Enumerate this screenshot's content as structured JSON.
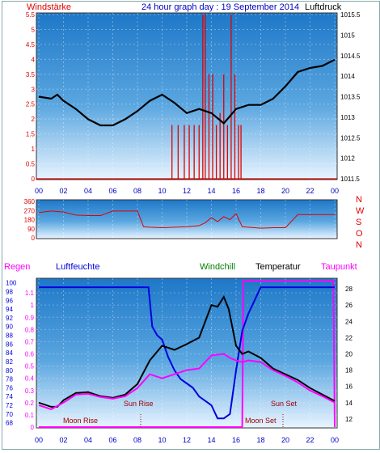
{
  "header": {
    "wind_label": "Windstärke",
    "title": "24 hour graph day : 19 September 2014",
    "pressure_label": "Luftdruck"
  },
  "time_ticks": [
    "00",
    "02",
    "04",
    "06",
    "08",
    "10",
    "12",
    "14",
    "16",
    "18",
    "20",
    "22",
    "00"
  ],
  "compass": [
    "N",
    "W",
    "S",
    "O",
    "N"
  ],
  "legend": {
    "rain": "Regen",
    "humidity": "Luftfeuchte",
    "windchill": "Windchill",
    "temperature": "Temperatur",
    "dewpoint": "Taupunkt"
  },
  "annotations": {
    "moon_rise": "Moon Rise",
    "sun_rise": "Sun Rise",
    "moon_set": "Moon Set",
    "sun_set": "Sun Set"
  },
  "colors": {
    "red": "#e00000",
    "blue": "#0000e0",
    "green": "#008000",
    "magenta": "#ff00ff",
    "dark_red": "#a00000",
    "sky_top": "#1e78c8",
    "sky_bottom": "#e8f4ff"
  },
  "chart_data": [
    {
      "type": "line",
      "name": "wind-pressure",
      "x_unit": "hour",
      "left_axis": {
        "label": "Windstärke",
        "ticks": [
          "0",
          "0.5",
          "1",
          "1.5",
          "2",
          "2.5",
          "3",
          "3.5",
          "4",
          "4.5",
          "5",
          "5.5"
        ],
        "range": [
          0,
          5.5
        ]
      },
      "right_axis": {
        "label": "Luftdruck",
        "ticks": [
          "1011.5",
          "1012",
          "1012.5",
          "1013",
          "1013.5",
          "1014",
          "1014.5",
          "1015",
          "1015.5"
        ],
        "range": [
          1011.5,
          1015.5
        ]
      },
      "pressure": [
        [
          0,
          1013.5
        ],
        [
          1,
          1013.45
        ],
        [
          1.5,
          1013.55
        ],
        [
          2,
          1013.4
        ],
        [
          3,
          1013.2
        ],
        [
          4,
          1012.95
        ],
        [
          5,
          1012.8
        ],
        [
          6,
          1012.8
        ],
        [
          7,
          1012.95
        ],
        [
          8,
          1013.15
        ],
        [
          9,
          1013.4
        ],
        [
          10,
          1013.55
        ],
        [
          11,
          1013.35
        ],
        [
          12,
          1013.1
        ],
        [
          13,
          1013.2
        ],
        [
          14,
          1013.1
        ],
        [
          15,
          1012.85
        ],
        [
          16,
          1013.2
        ],
        [
          17,
          1013.3
        ],
        [
          18,
          1013.3
        ],
        [
          19,
          1013.45
        ],
        [
          20,
          1013.75
        ],
        [
          21,
          1014.1
        ],
        [
          22,
          1014.2
        ],
        [
          23,
          1014.25
        ],
        [
          24,
          1014.4
        ]
      ],
      "wind_gusts": [
        [
          10.8,
          1.8
        ],
        [
          11.3,
          1.8
        ],
        [
          11.8,
          1.8
        ],
        [
          12.2,
          1.8
        ],
        [
          12.6,
          1.8
        ],
        [
          13.0,
          1.8
        ],
        [
          13.3,
          5.5
        ],
        [
          13.5,
          5.5
        ],
        [
          13.8,
          3.5
        ],
        [
          14.1,
          3.5
        ],
        [
          14.4,
          1.8
        ],
        [
          14.7,
          2.2
        ],
        [
          15.0,
          3.5
        ],
        [
          15.3,
          1.8
        ],
        [
          15.6,
          5.5
        ],
        [
          15.9,
          3.5
        ],
        [
          16.2,
          1.8
        ],
        [
          16.4,
          1.8
        ]
      ]
    },
    {
      "type": "scatter",
      "name": "wind-direction",
      "y_axis": {
        "ticks": [
          "0",
          "90",
          "180",
          "270",
          "360"
        ],
        "range": [
          0,
          360
        ]
      },
      "direction": [
        [
          0,
          250
        ],
        [
          1,
          265
        ],
        [
          2,
          255
        ],
        [
          3,
          225
        ],
        [
          4,
          220
        ],
        [
          5,
          220
        ],
        [
          6,
          265
        ],
        [
          7,
          265
        ],
        [
          8,
          265
        ],
        [
          8.5,
          110
        ],
        [
          9,
          105
        ],
        [
          10,
          100
        ],
        [
          11,
          105
        ],
        [
          12,
          110
        ],
        [
          13,
          120
        ],
        [
          13.5,
          150
        ],
        [
          14,
          200
        ],
        [
          14.5,
          160
        ],
        [
          15,
          210
        ],
        [
          15.5,
          180
        ],
        [
          16,
          240
        ],
        [
          16.5,
          110
        ],
        [
          17,
          105
        ],
        [
          18,
          95
        ],
        [
          19,
          100
        ],
        [
          20,
          100
        ],
        [
          21,
          230
        ],
        [
          22,
          230
        ],
        [
          23,
          230
        ],
        [
          24,
          230
        ]
      ]
    },
    {
      "type": "line",
      "name": "temperature-humidity",
      "rain_axis": {
        "label": "Regen",
        "ticks": [
          "0",
          "0.1",
          "0.2",
          "0.3",
          "0.4",
          "0.5",
          "0.6",
          "0.7",
          "0.8",
          "0.9",
          "1",
          "1.1"
        ],
        "range": [
          0,
          1.2
        ]
      },
      "humidity_axis": {
        "label": "Luftfeuchte",
        "ticks": [
          "68",
          "70",
          "72",
          "74",
          "76",
          "78",
          "80",
          "82",
          "84",
          "86",
          "88",
          "90",
          "92",
          "94",
          "96",
          "98",
          "100"
        ],
        "range": [
          67,
          100.5
        ]
      },
      "temp_axis": {
        "ticks": [
          "12",
          "14",
          "16",
          "18",
          "20",
          "22",
          "24",
          "26",
          "28"
        ],
        "range": [
          11,
          29
        ]
      },
      "humidity": [
        [
          0,
          99
        ],
        [
          8.9,
          99
        ],
        [
          9.2,
          90
        ],
        [
          9.6,
          88
        ],
        [
          10,
          87
        ],
        [
          10.5,
          83
        ],
        [
          11,
          80
        ],
        [
          11.5,
          78
        ],
        [
          12,
          77
        ],
        [
          12.5,
          76
        ],
        [
          13,
          74
        ],
        [
          13.5,
          73
        ],
        [
          14,
          72
        ],
        [
          14.5,
          69
        ],
        [
          15,
          69
        ],
        [
          15.5,
          70
        ],
        [
          16,
          80
        ],
        [
          16.5,
          89
        ],
        [
          17,
          93
        ],
        [
          17.5,
          96
        ],
        [
          18,
          99
        ],
        [
          24,
          99
        ]
      ],
      "temperature": [
        [
          0,
          14
        ],
        [
          1,
          13.5
        ],
        [
          1.5,
          13.5
        ],
        [
          2,
          14.3
        ],
        [
          3,
          15.2
        ],
        [
          4,
          15.3
        ],
        [
          5,
          14.8
        ],
        [
          6,
          14.6
        ],
        [
          7,
          15
        ],
        [
          8,
          16.3
        ],
        [
          9,
          19.2
        ],
        [
          10,
          21
        ],
        [
          11,
          20.5
        ],
        [
          12,
          21.2
        ],
        [
          13,
          22
        ],
        [
          14,
          26
        ],
        [
          14.5,
          25.8
        ],
        [
          15,
          27
        ],
        [
          15.4,
          25.5
        ],
        [
          16,
          21
        ],
        [
          16.5,
          20
        ],
        [
          17,
          20.3
        ],
        [
          18,
          19.5
        ],
        [
          19,
          18.2
        ],
        [
          20,
          17.5
        ],
        [
          21,
          16.8
        ],
        [
          22,
          15.8
        ],
        [
          23,
          15
        ],
        [
          24,
          14.2
        ]
      ],
      "dewpoint": [
        [
          0,
          13.7
        ],
        [
          1,
          13.2
        ],
        [
          2,
          14
        ],
        [
          3,
          15
        ],
        [
          4,
          15.1
        ],
        [
          5,
          14.7
        ],
        [
          6,
          14.5
        ],
        [
          7,
          14.8
        ],
        [
          8,
          15.8
        ],
        [
          9,
          17.5
        ],
        [
          10,
          17
        ],
        [
          11,
          17.5
        ],
        [
          12,
          18
        ],
        [
          13,
          18.2
        ],
        [
          14,
          19.8
        ],
        [
          15,
          20
        ],
        [
          15.5,
          19.5
        ],
        [
          16,
          19.2
        ],
        [
          16.5,
          19
        ],
        [
          17,
          19.2
        ],
        [
          18,
          19
        ],
        [
          19,
          18
        ],
        [
          20,
          17.3
        ],
        [
          21,
          16.5
        ],
        [
          22,
          15.5
        ],
        [
          23,
          14.8
        ],
        [
          24,
          14
        ]
      ],
      "rain": [
        [
          0,
          0
        ],
        [
          16.5,
          0
        ],
        [
          16.6,
          1.2
        ],
        [
          23.9,
          1.2
        ],
        [
          24,
          0
        ]
      ]
    }
  ]
}
